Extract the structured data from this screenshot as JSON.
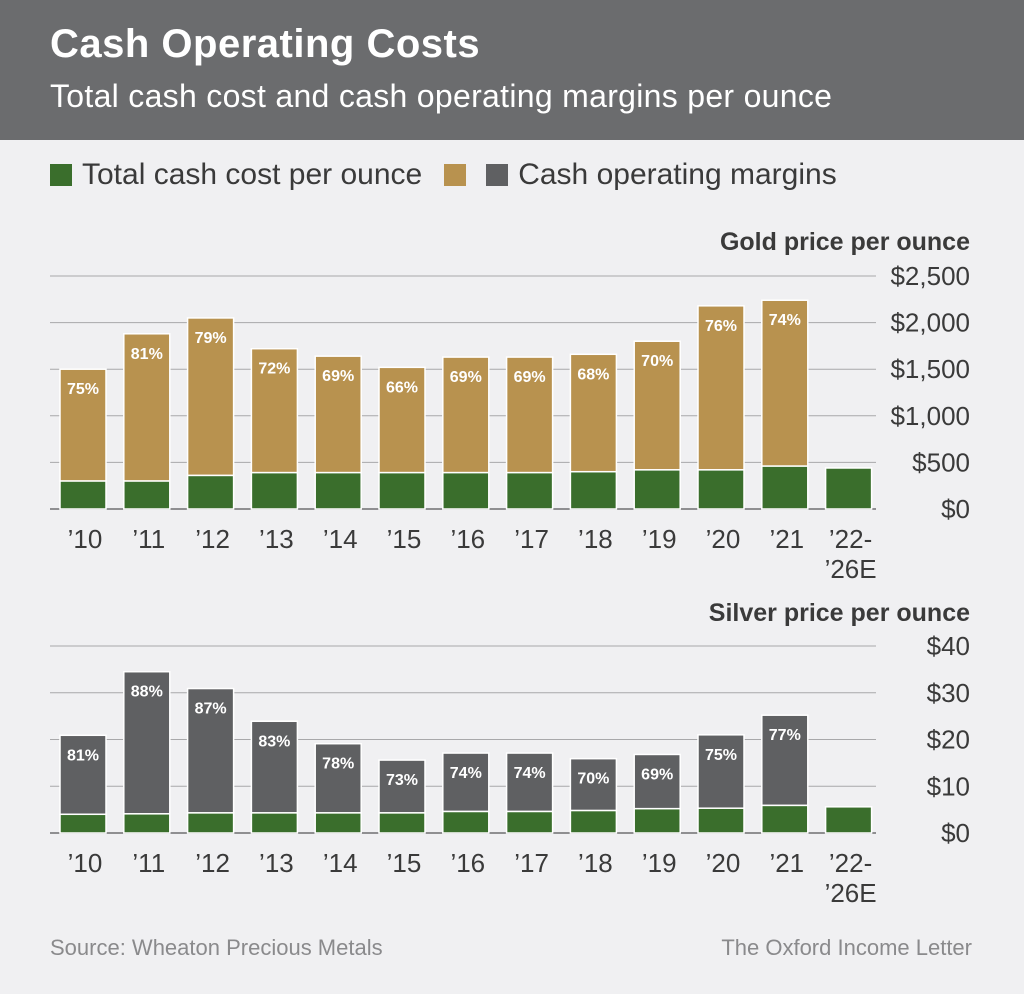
{
  "header": {
    "title": "Cash Operating Costs",
    "subtitle": "Total cash cost and cash operating margins per ounce"
  },
  "legend": {
    "items": [
      {
        "label": "Total cash cost per ounce",
        "colors": [
          "#3a6e2c"
        ]
      },
      {
        "label": "",
        "colors": [
          "#b8924f"
        ]
      },
      {
        "label": "Cash operating margins",
        "colors": [
          "#5f6062"
        ]
      }
    ]
  },
  "colors": {
    "cost": "#3a6e2c",
    "gold_margin": "#b8924f",
    "silver_margin": "#5f6062",
    "grid": "#a8a8aa",
    "axis_text": "#3a3a3a",
    "label_text": "#ffffff"
  },
  "chart_data": [
    {
      "type": "bar",
      "stacked": true,
      "title": "Gold price per ounce",
      "categories": [
        "’10",
        "’11",
        "’12",
        "’13",
        "’14",
        "’15",
        "’16",
        "’17",
        "’18",
        "’19",
        "’20",
        "’21",
        "’22-\n’26E"
      ],
      "ylim": [
        0,
        2500
      ],
      "yticks": [
        0,
        500,
        1000,
        1500,
        2000,
        2500
      ],
      "ytick_labels": [
        "$0",
        "$500",
        "$1,000",
        "$1,500",
        "$2,000",
        "$2,500"
      ],
      "series": [
        {
          "name": "Total cash cost per ounce",
          "values": [
            300,
            300,
            360,
            390,
            390,
            390,
            390,
            390,
            400,
            420,
            420,
            460,
            440
          ]
        },
        {
          "name": "Cash operating margins",
          "values": [
            1200,
            1580,
            1690,
            1330,
            1250,
            1130,
            1240,
            1240,
            1260,
            1380,
            1760,
            1780,
            null
          ]
        }
      ],
      "margin_labels": [
        "75%",
        "81%",
        "79%",
        "72%",
        "69%",
        "66%",
        "69%",
        "69%",
        "68%",
        "70%",
        "76%",
        "74%",
        ""
      ]
    },
    {
      "type": "bar",
      "stacked": true,
      "title": "Silver price per ounce",
      "categories": [
        "’10",
        "’11",
        "’12",
        "’13",
        "’14",
        "’15",
        "’16",
        "’17",
        "’18",
        "’19",
        "’20",
        "’21",
        "’22-\n’26E"
      ],
      "ylim": [
        0,
        40
      ],
      "yticks": [
        0,
        10,
        20,
        30,
        40
      ],
      "ytick_labels": [
        "$0",
        "$10",
        "$20",
        "$30",
        "$40"
      ],
      "series": [
        {
          "name": "Total cash cost per ounce",
          "values": [
            4.0,
            4.1,
            4.3,
            4.3,
            4.3,
            4.3,
            4.6,
            4.6,
            4.8,
            5.2,
            5.3,
            5.9,
            5.6
          ]
        },
        {
          "name": "Cash operating margins",
          "values": [
            16.9,
            30.4,
            26.6,
            19.6,
            14.8,
            11.3,
            12.5,
            12.5,
            11.1,
            11.6,
            15.7,
            19.3,
            null
          ]
        }
      ],
      "margin_labels": [
        "81%",
        "88%",
        "87%",
        "83%",
        "78%",
        "73%",
        "74%",
        "74%",
        "70%",
        "69%",
        "75%",
        "77%",
        ""
      ]
    }
  ],
  "footer": {
    "source": "Source: Wheaton Precious Metals",
    "publisher": "The Oxford Income Letter"
  }
}
